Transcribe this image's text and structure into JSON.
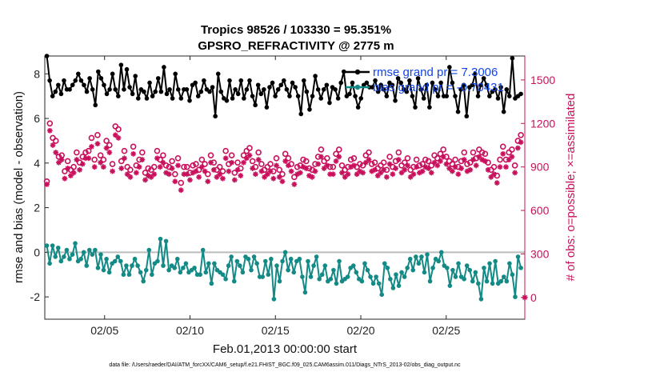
{
  "chart_data": {
    "type": "line",
    "title_line1": "Tropics 98526 / 103330 = 95.351%",
    "title_line2": "GPSRO_REFRACTIVITY @ 2775 m",
    "xlabel": "Feb.01,2013 00:00:00 start",
    "ylabel_left": "rmse and bias (model - observation)",
    "ylabel_right": "# of obs: o=possible; ×=assimilated",
    "x_range_days": [
      0.5,
      28.6
    ],
    "x_ticks": [
      {
        "day": 4,
        "label": "02/05"
      },
      {
        "day": 9,
        "label": "02/10"
      },
      {
        "day": 14,
        "label": "02/15"
      },
      {
        "day": 19,
        "label": "02/20"
      },
      {
        "day": 24,
        "label": "02/25"
      }
    ],
    "y_left_range": [
      -3,
      8.8
    ],
    "y_left_ticks": [
      -2,
      0,
      2,
      4,
      6,
      8
    ],
    "y_right_range": [
      -150,
      1665
    ],
    "y_right_ticks": [
      0,
      300,
      600,
      900,
      1200,
      1500
    ],
    "legend": {
      "rmse": "rmse grand pr = 7.3006",
      "bias": "bias grand pr = -0.70431"
    },
    "zero_line": 0,
    "colors": {
      "rmse": "#000000",
      "bias": "#138a86",
      "obs": "#c8105c",
      "zero": "#bcbcbc",
      "legend_text": "#1245e6"
    },
    "series": [
      {
        "name": "rmse",
        "axis": "left",
        "values": [
          8.8,
          7.7,
          7.0,
          7.2,
          7.5,
          7.1,
          7.7,
          7.3,
          7.3,
          7.5,
          7.7,
          8.0,
          7.7,
          7.5,
          7.2,
          7.8,
          7.3,
          6.6,
          8.1,
          7.8,
          7.5,
          7.1,
          7.3,
          8.0,
          7.3,
          7.0,
          8.4,
          7.3,
          8.2,
          7.4,
          7.1,
          7.9,
          6.9,
          7.3,
          7.2,
          6.9,
          7.6,
          7.0,
          7.2,
          7.8,
          7.2,
          8.3,
          7.1,
          7.3,
          6.9,
          8.0,
          7.3,
          6.9,
          7.3,
          7.3,
          6.8,
          7.5,
          7.6,
          7.0,
          7.2,
          7.7,
          7.3,
          7.2,
          7.4,
          6.1,
          8.0,
          7.2,
          6.9,
          6.8,
          7.7,
          6.9,
          7.3,
          7.1,
          7.7,
          6.9,
          7.3,
          7.7,
          7.0,
          6.6,
          7.5,
          7.1,
          7.3,
          6.5,
          7.4,
          7.6,
          7.0,
          7.3,
          7.5,
          7.7,
          7.3,
          7.0,
          7.6,
          7.4,
          7.0,
          6.2,
          7.7,
          7.2,
          6.4,
          7.0,
          7.9,
          7.3,
          6.9,
          7.3,
          7.5,
          6.7,
          7.4,
          7.3,
          6.9,
          7.6,
          8.1,
          7.0,
          7.1,
          7.6,
          7.0,
          6.5,
          6.9,
          7.5,
          7.6,
          7.4,
          7.4,
          7.7,
          7.2,
          7.5,
          7.3,
          7.0,
          7.6,
          7.5,
          6.8,
          7.8,
          7.6,
          7.3,
          7.2,
          7.7,
          7.0,
          6.5,
          7.8,
          7.3,
          6.9,
          7.5,
          6.5,
          7.6,
          7.3,
          7.0,
          7.6,
          7.0,
          7.0,
          8.3,
          7.6,
          7.0,
          6.3,
          7.3,
          7.5,
          6.1,
          7.4,
          7.5,
          8.0,
          7.0,
          7.5,
          7.8,
          7.5,
          7.0,
          7.2,
          7.3,
          6.9,
          7.4,
          6.3,
          7.3,
          7.0,
          8.7,
          6.9,
          7.0,
          7.1
        ]
      },
      {
        "name": "bias",
        "axis": "left",
        "values": [
          0.3,
          -0.5,
          0.3,
          -0.2,
          0.2,
          -0.4,
          -0.2,
          0.1,
          -0.3,
          -0.1,
          0.4,
          -0.4,
          -0.3,
          0.0,
          -0.6,
          0.1,
          -0.1,
          0.1,
          -0.7,
          -0.1,
          -0.8,
          -0.3,
          -0.9,
          -0.5,
          -0.4,
          -0.2,
          -0.4,
          -1.0,
          -0.6,
          -1.0,
          -0.6,
          -0.3,
          -0.6,
          -0.9,
          -1.3,
          -0.8,
          0.1,
          -1.0,
          -0.5,
          -0.4,
          0.6,
          -0.6,
          0.5,
          -0.8,
          -0.6,
          -0.7,
          -0.3,
          -0.9,
          -0.7,
          -0.5,
          -0.9,
          -0.8,
          -0.7,
          -1.0,
          -1.0,
          0.1,
          -0.9,
          -0.5,
          -1.4,
          -0.5,
          -0.8,
          -0.9,
          -1.0,
          -1.2,
          -0.6,
          -0.2,
          -1.3,
          -0.4,
          -0.6,
          -0.9,
          -0.2,
          -0.3,
          -0.8,
          -0.2,
          -0.5,
          -1.1,
          -1.1,
          -0.4,
          -1.0,
          -0.3,
          -2.1,
          -0.6,
          -1.3,
          -0.4,
          0.0,
          -0.8,
          -0.3,
          -0.9,
          -0.4,
          -0.3,
          -1.1,
          -1.8,
          -0.4,
          -1.1,
          -0.6,
          -0.2,
          -1.2,
          -1.0,
          -0.6,
          -1.3,
          -1.2,
          -0.8,
          -1.4,
          -0.4,
          -1.3,
          -1.2,
          -1.1,
          -0.7,
          -0.6,
          -0.9,
          -1.2,
          -1.3,
          -0.5,
          -0.8,
          -1.1,
          -1.4,
          -1.1,
          -1.4,
          -1.9,
          -0.5,
          -0.7,
          -1.2,
          -1.6,
          -1.0,
          -1.5,
          -0.9,
          -1.1,
          -0.7,
          -0.3,
          -0.8,
          -0.2,
          -0.5,
          -0.2,
          -0.9,
          -0.1,
          -1.3,
          -0.7,
          -0.3,
          -0.4,
          0.0,
          -0.6,
          -0.7,
          -1.5,
          -0.8,
          -1.1,
          -0.5,
          -1.1,
          -1.2,
          -0.6,
          -0.8,
          -1.3,
          -0.9,
          -1.4,
          -2.1,
          -0.7,
          -1.3,
          -0.5,
          -1.4,
          -0.4,
          -1.4,
          -1.3,
          -1.1,
          -1.3,
          -0.5,
          -1.0,
          -2.0,
          -0.2,
          -0.7
        ]
      },
      {
        "name": "possible",
        "axis": "right",
        "marker": "o",
        "values": [
          800,
          1200,
          1100,
          1080,
          970,
          980,
          870,
          940,
          880,
          900,
          1000,
          930,
          970,
          1000,
          1010,
          1100,
          950,
          1120,
          980,
          950,
          1080,
          1050,
          920,
          1180,
          1160,
          940,
          1010,
          900,
          880,
          1040,
          910,
          950,
          1000,
          860,
          890,
          880,
          900,
          1010,
          950,
          980,
          910,
          900,
          940,
          850,
          960,
          790,
          900,
          900,
          860,
          910,
          920,
          880,
          950,
          920,
          850,
          980,
          930,
          880,
          900,
          870,
          1010,
          920,
          980,
          860,
          930,
          890,
          980,
          1010,
          1030,
          940,
          900,
          1000,
          920,
          880,
          900,
          920,
          870,
          960,
          880,
          850,
          990,
          960,
          920,
          830,
          900,
          910,
          950,
          940,
          890,
          880,
          920,
          970,
          1020,
          940,
          960,
          900,
          900,
          990,
          1020,
          910,
          880,
          900,
          950,
          960,
          900,
          920,
          910,
          980,
          1000,
          920,
          930,
          890,
          910,
          930,
          880,
          970,
          900,
          940,
          1000,
          910,
          930,
          960,
          880,
          900,
          950,
          910,
          920,
          950,
          940,
          910,
          980,
          960,
          990,
          1020,
          970,
          940,
          920,
          950,
          900,
          940,
          1000,
          920,
          930,
          1000,
          960,
          1020,
          1000,
          990,
          930,
          880,
          900,
          840,
          950,
          1040,
          950,
          1000,
          1020,
          910,
          1080,
          1120
        ]
      },
      {
        "name": "assimilated",
        "axis": "right",
        "marker": "x",
        "values": [
          780,
          1150,
          1050,
          1000,
          930,
          950,
          820,
          890,
          840,
          860,
          950,
          880,
          920,
          960,
          960,
          1040,
          900,
          1060,
          930,
          900,
          1030,
          1000,
          870,
          1120,
          1100,
          890,
          960,
          850,
          830,
          990,
          860,
          900,
          950,
          810,
          840,
          830,
          850,
          960,
          900,
          930,
          860,
          850,
          890,
          800,
          910,
          740,
          850,
          850,
          810,
          860,
          870,
          830,
          900,
          870,
          800,
          930,
          880,
          830,
          850,
          820,
          960,
          870,
          930,
          810,
          880,
          840,
          930,
          960,
          980,
          890,
          850,
          950,
          870,
          830,
          850,
          870,
          820,
          910,
          830,
          800,
          940,
          910,
          870,
          780,
          850,
          860,
          900,
          890,
          840,
          830,
          870,
          920,
          970,
          890,
          910,
          850,
          850,
          940,
          970,
          860,
          830,
          850,
          900,
          910,
          850,
          870,
          860,
          930,
          950,
          870,
          880,
          840,
          860,
          880,
          830,
          920,
          850,
          890,
          950,
          860,
          880,
          910,
          830,
          850,
          900,
          860,
          870,
          900,
          890,
          860,
          930,
          910,
          940,
          970,
          920,
          890,
          870,
          900,
          850,
          890,
          950,
          870,
          880,
          950,
          910,
          970,
          950,
          940,
          880,
          830,
          850,
          790,
          900,
          990,
          900,
          950,
          970,
          860,
          1030,
          1070
        ]
      }
    ],
    "extra_points": [
      {
        "series": "assimilated",
        "axis": "right",
        "value": 0,
        "at": "right-axis"
      }
    ]
  },
  "footer": "data file: /Users/raeder/DAI/ATM_forcXX/CAM6_setup/f.e21.FHIST_BGC.f09_025.CAM6assim.011/Diags_NTrS_2013-02/obs_diag_output.nc"
}
